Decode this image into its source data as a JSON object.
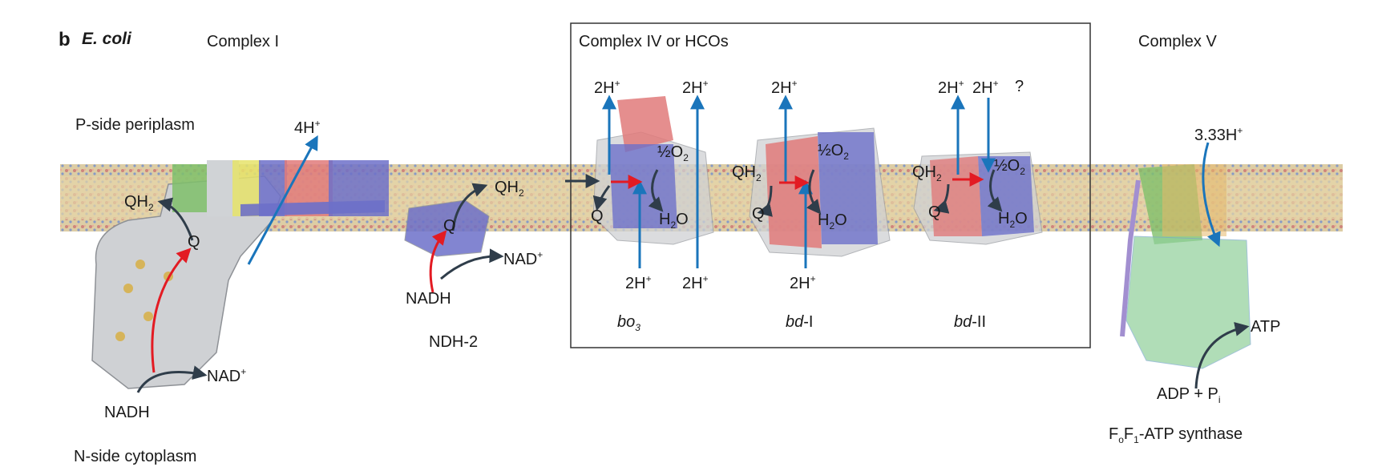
{
  "figure": {
    "panel_letter": "b",
    "organism": "E. coli",
    "side_p": "P-side periplasm",
    "side_n": "N-side cytoplasm"
  },
  "complex_i": {
    "title": "Complex I",
    "protons": "4H",
    "protons_sup": "+",
    "qh2": "QH",
    "qh2_sub": "2",
    "q": "Q",
    "nadh": "NADH",
    "nad": "NAD",
    "nad_sup": "+"
  },
  "ndh2": {
    "name": "NDH-2",
    "qh2": "QH",
    "qh2_sub": "2",
    "q": "Q",
    "nadh": "NADH",
    "nad": "NAD",
    "nad_sup": "+"
  },
  "complex_iv": {
    "title": "Complex IV or HCOs",
    "bo3": {
      "name": "bo",
      "name_sub": "3",
      "top_left": "2H",
      "top_right": "2H",
      "bottom_left": "2H",
      "bottom_right": "2H",
      "sup": "+",
      "q": "Q",
      "o2_half": "½O",
      "o2_sub": "2",
      "h2o_h": "H",
      "h2o_sub": "2",
      "h2o_o": "O"
    },
    "bd1": {
      "name_italic": "bd",
      "name_suffix": "-I",
      "top": "2H",
      "bottom": "2H",
      "sup": "+",
      "qh2": "QH",
      "qh2_sub": "2",
      "q": "Q",
      "o2_half": "½O",
      "o2_sub": "2",
      "h2o_h": "H",
      "h2o_sub": "2",
      "h2o_o": "O"
    },
    "bd2": {
      "name_italic": "bd",
      "name_suffix": "-II",
      "top_left": "2H",
      "top_right": "2H",
      "sup": "+",
      "question": "?",
      "qh2": "QH",
      "qh2_sub": "2",
      "q": "Q",
      "o2_half": "½O",
      "o2_sub": "2",
      "h2o_h": "H",
      "h2o_sub": "2",
      "h2o_o": "O"
    }
  },
  "complex_v": {
    "title": "Complex V",
    "protons": "3.33H",
    "protons_sup": "+",
    "atp": "ATP",
    "adp": "ADP + P",
    "pi_sub": "i",
    "synthase_f": "F",
    "synthase_o": "o",
    "synthase_f1": "F",
    "synthase_1": "1",
    "synthase_rest": "-ATP synthase"
  },
  "colors": {
    "proton_arrow": "#1a75bb",
    "electron_arrow": "#e31b23",
    "reaction_arrow": "#2f3d4a",
    "membrane_body": "#d9c79a",
    "protein_grey": "#cfd1d4",
    "protein_blue": "#6d70c9",
    "protein_red": "#e07a7a",
    "protein_green": "#7fbf6a",
    "protein_yellow": "#e6e36a",
    "box_border": "#333333"
  }
}
